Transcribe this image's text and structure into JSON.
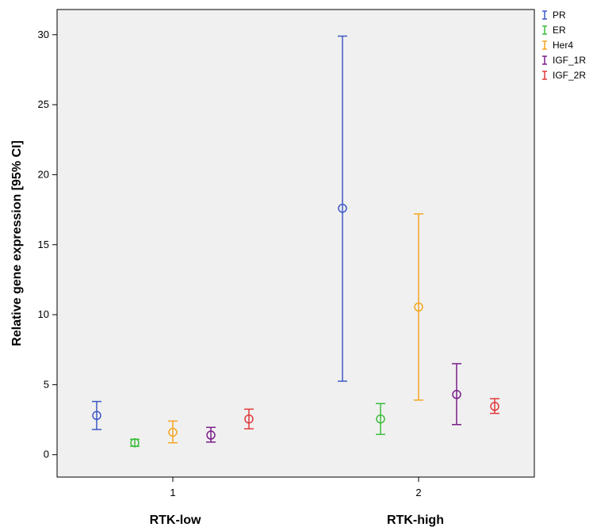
{
  "chart_data": {
    "type": "scatter",
    "subtype": "error-bar",
    "title": "",
    "ylabel": "Relative gene expression [95% CI]",
    "ylim": [
      -1.6,
      31.8
    ],
    "y_ticks": [
      0,
      5,
      10,
      15,
      20,
      25,
      30
    ],
    "grid": false,
    "background_color": "#f0f0f0",
    "legend_position": "top-right",
    "categories": [
      "1",
      "2"
    ],
    "category_labels": [
      "RTK-low",
      "RTK-high"
    ],
    "series": [
      {
        "name": "PR",
        "color": "#3d59c6",
        "mean": [
          2.8,
          17.6
        ],
        "lower": [
          1.8,
          5.25
        ],
        "upper": [
          3.8,
          29.9
        ]
      },
      {
        "name": "ER",
        "color": "#3cbd3c",
        "mean": [
          0.85,
          2.55
        ],
        "lower": [
          0.6,
          1.45
        ],
        "upper": [
          1.1,
          3.65
        ]
      },
      {
        "name": "Her4",
        "color": "#f5a623",
        "mean": [
          1.6,
          10.55
        ],
        "lower": [
          0.85,
          3.9
        ],
        "upper": [
          2.4,
          17.2
        ]
      },
      {
        "name": "IGF_1R",
        "color": "#7a1f8a",
        "mean": [
          1.4,
          4.3
        ],
        "lower": [
          0.9,
          2.15
        ],
        "upper": [
          1.95,
          6.5
        ]
      },
      {
        "name": "IGF_2R",
        "color": "#e03a3a",
        "mean": [
          2.55,
          3.45
        ],
        "lower": [
          1.85,
          2.95
        ],
        "upper": [
          3.25,
          4.0
        ]
      }
    ]
  }
}
